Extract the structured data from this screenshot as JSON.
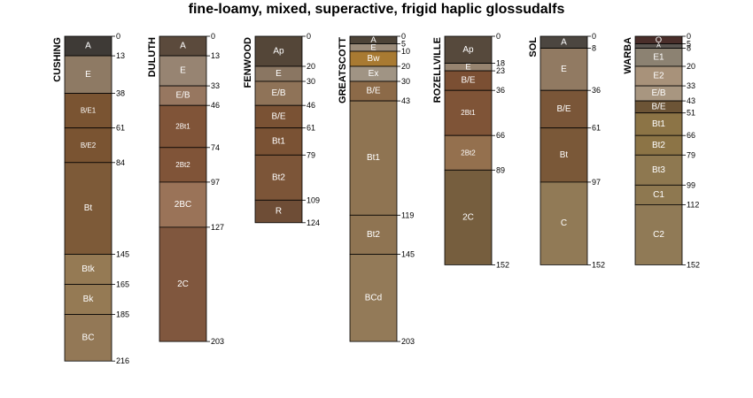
{
  "title": "fine-loamy, mixed, superactive, frigid haplic glossudalfs",
  "profiles": [
    {
      "name": "CUSHING",
      "horizons": [
        {
          "name": "A",
          "top": 0,
          "bottom": 13,
          "color": "#3e3a36"
        },
        {
          "name": "E",
          "top": 13,
          "bottom": 38,
          "color": "#8e7a64"
        },
        {
          "name": "B/E1",
          "top": 38,
          "bottom": 61,
          "color": "#7a5432"
        },
        {
          "name": "B/E2",
          "top": 61,
          "bottom": 84,
          "color": "#7a5432"
        },
        {
          "name": "Bt",
          "top": 84,
          "bottom": 145,
          "color": "#7d5a38"
        },
        {
          "name": "Btk",
          "top": 145,
          "bottom": 165,
          "color": "#957a54"
        },
        {
          "name": "Bk",
          "top": 165,
          "bottom": 185,
          "color": "#957a54"
        },
        {
          "name": "BC",
          "top": 185,
          "bottom": 216,
          "color": "#937856"
        }
      ]
    },
    {
      "name": "DULUTH",
      "horizons": [
        {
          "name": "A",
          "top": 0,
          "bottom": 13,
          "color": "#5b4a3c"
        },
        {
          "name": "E",
          "top": 13,
          "bottom": 33,
          "color": "#978472"
        },
        {
          "name": "E/B",
          "top": 33,
          "bottom": 46,
          "color": "#977760"
        },
        {
          "name": "2Bt1",
          "top": 46,
          "bottom": 74,
          "color": "#805438"
        },
        {
          "name": "2Bt2",
          "top": 74,
          "bottom": 97,
          "color": "#805438"
        },
        {
          "name": "2BC",
          "top": 97,
          "bottom": 127,
          "color": "#9a7358"
        },
        {
          "name": "2C",
          "top": 127,
          "bottom": 203,
          "color": "#80573e"
        }
      ]
    },
    {
      "name": "FENWOOD",
      "horizons": [
        {
          "name": "Ap",
          "top": 0,
          "bottom": 20,
          "color": "#544638"
        },
        {
          "name": "E",
          "top": 20,
          "bottom": 30,
          "color": "#8a7662"
        },
        {
          "name": "E/B",
          "top": 30,
          "bottom": 46,
          "color": "#8f7358"
        },
        {
          "name": "B/E",
          "top": 46,
          "bottom": 61,
          "color": "#7a5234"
        },
        {
          "name": "Bt1",
          "top": 61,
          "bottom": 79,
          "color": "#7a5234"
        },
        {
          "name": "Bt2",
          "top": 79,
          "bottom": 109,
          "color": "#7c5538"
        },
        {
          "name": "R",
          "top": 109,
          "bottom": 124,
          "color": "#6e4d36"
        }
      ]
    },
    {
      "name": "GREATSCOTT",
      "horizons": [
        {
          "name": "A",
          "top": 0,
          "bottom": 5,
          "color": "#4e4438"
        },
        {
          "name": "E",
          "top": 5,
          "bottom": 10,
          "color": "#9c8c7a"
        },
        {
          "name": "Bw",
          "top": 10,
          "bottom": 20,
          "color": "#a87a32"
        },
        {
          "name": "Ex",
          "top": 20,
          "bottom": 30,
          "color": "#a09484"
        },
        {
          "name": "B/E",
          "top": 30,
          "bottom": 43,
          "color": "#8c6a48"
        },
        {
          "name": "Bt1",
          "top": 43,
          "bottom": 119,
          "color": "#8f7452"
        },
        {
          "name": "Bt2",
          "top": 119,
          "bottom": 145,
          "color": "#8f7452"
        },
        {
          "name": "BCd",
          "top": 145,
          "bottom": 203,
          "color": "#937a58"
        }
      ]
    },
    {
      "name": "ROZELLVILLE",
      "horizons": [
        {
          "name": "Ap",
          "top": 0,
          "bottom": 18,
          "color": "#56493c"
        },
        {
          "name": "E",
          "top": 18,
          "bottom": 23,
          "color": "#978470"
        },
        {
          "name": "B/E",
          "top": 23,
          "bottom": 36,
          "color": "#7b4f33"
        },
        {
          "name": "2Bt1",
          "top": 36,
          "bottom": 66,
          "color": "#7f5437"
        },
        {
          "name": "2Bt2",
          "top": 66,
          "bottom": 89,
          "color": "#94704e"
        },
        {
          "name": "2C",
          "top": 89,
          "bottom": 152,
          "color": "#765e3e"
        }
      ]
    },
    {
      "name": "SOL",
      "horizons": [
        {
          "name": "A",
          "top": 0,
          "bottom": 8,
          "color": "#4c4640"
        },
        {
          "name": "E",
          "top": 8,
          "bottom": 36,
          "color": "#917a62"
        },
        {
          "name": "B/E",
          "top": 36,
          "bottom": 61,
          "color": "#7a5638"
        },
        {
          "name": "Bt",
          "top": 61,
          "bottom": 97,
          "color": "#7a5838"
        },
        {
          "name": "C",
          "top": 97,
          "bottom": 152,
          "color": "#917a56"
        }
      ]
    },
    {
      "name": "WARBA",
      "horizons": [
        {
          "name": "O",
          "top": 0,
          "bottom": 5,
          "color": "#4a2e2a"
        },
        {
          "name": "A",
          "top": 5,
          "bottom": 8,
          "color": "#5a5550"
        },
        {
          "name": "E1",
          "top": 8,
          "bottom": 20,
          "color": "#8c8272"
        },
        {
          "name": "E2",
          "top": 20,
          "bottom": 33,
          "color": "#a8927a"
        },
        {
          "name": "E/B",
          "top": 33,
          "bottom": 43,
          "color": "#a89680"
        },
        {
          "name": "B/E",
          "top": 43,
          "bottom": 51,
          "color": "#6c5436"
        },
        {
          "name": "Bt1",
          "top": 51,
          "bottom": 66,
          "color": "#8c7446"
        },
        {
          "name": "Bt2",
          "top": 66,
          "bottom": 79,
          "color": "#8c7446"
        },
        {
          "name": "Bt3",
          "top": 79,
          "bottom": 99,
          "color": "#8e7850"
        },
        {
          "name": "C1",
          "top": 99,
          "bottom": 112,
          "color": "#8e7850"
        },
        {
          "name": "C2",
          "top": 112,
          "bottom": 152,
          "color": "#907a56"
        }
      ]
    }
  ]
}
